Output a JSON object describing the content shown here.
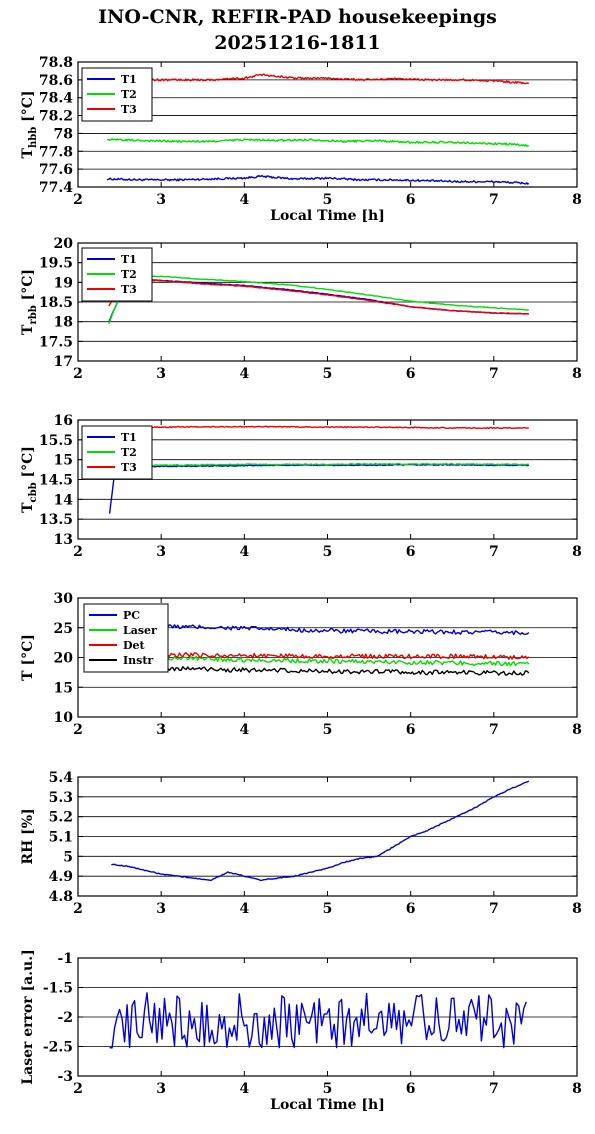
{
  "header": {
    "title_line1": "INO-CNR, REFIR-PAD housekeepings",
    "title_line2": "20251216-1811"
  },
  "chart_data": [
    {
      "type": "line",
      "ylabel": "T_hbb [°C]",
      "xlabel": "Local Time [h]",
      "xlim": [
        2,
        8
      ],
      "ylim": [
        77.4,
        78.8
      ],
      "yticks": [
        "77.4",
        "77.6",
        "77.8",
        "78",
        "78.2",
        "78.4",
        "78.6",
        "78.8"
      ],
      "xticks": [
        "2",
        "3",
        "4",
        "5",
        "6",
        "7",
        "8"
      ],
      "grid": true,
      "legend_position": "top-left",
      "series": [
        {
          "name": "T1",
          "color": "#0000dd",
          "x": [
            2.35,
            2.8,
            3.2,
            3.6,
            4.0,
            4.2,
            4.6,
            5.0,
            5.4,
            5.8,
            6.2,
            6.6,
            7.0,
            7.42
          ],
          "y": [
            77.49,
            77.48,
            77.48,
            77.49,
            77.5,
            77.52,
            77.49,
            77.5,
            77.48,
            77.48,
            77.47,
            77.46,
            77.46,
            77.44
          ]
        },
        {
          "name": "T2",
          "color": "#00dd00",
          "x": [
            2.35,
            2.8,
            3.2,
            3.6,
            4.0,
            4.4,
            4.8,
            5.2,
            5.6,
            6.0,
            6.4,
            6.8,
            7.2,
            7.42
          ],
          "y": [
            77.93,
            77.92,
            77.91,
            77.91,
            77.93,
            77.92,
            77.93,
            77.91,
            77.92,
            77.9,
            77.9,
            77.89,
            77.88,
            77.86
          ]
        },
        {
          "name": "T3",
          "color": "#ee0000",
          "x": [
            2.35,
            2.8,
            3.2,
            3.6,
            4.0,
            4.2,
            4.6,
            5.0,
            5.4,
            5.8,
            6.2,
            6.6,
            7.0,
            7.42
          ],
          "y": [
            78.6,
            78.6,
            78.6,
            78.6,
            78.62,
            78.66,
            78.62,
            78.62,
            78.6,
            78.61,
            78.6,
            78.6,
            78.59,
            78.56
          ]
        }
      ]
    },
    {
      "type": "line",
      "ylabel": "T_rbb [°C]",
      "xlabel": "",
      "xlim": [
        2,
        8
      ],
      "ylim": [
        17,
        20
      ],
      "yticks": [
        "17",
        "17.5",
        "18",
        "18.5",
        "19",
        "19.5",
        "20"
      ],
      "xticks": [
        "2",
        "3",
        "4",
        "5",
        "6",
        "7",
        "8"
      ],
      "grid": true,
      "legend_position": "top-left",
      "series": [
        {
          "name": "T1",
          "color": "#0000dd",
          "x": [
            2.37,
            2.6,
            3.0,
            3.5,
            4.0,
            4.5,
            5.0,
            5.5,
            6.0,
            6.5,
            7.0,
            7.42
          ],
          "y": [
            18.0,
            19.1,
            19.05,
            18.98,
            18.92,
            18.82,
            18.7,
            18.56,
            18.38,
            18.28,
            18.22,
            18.2
          ]
        },
        {
          "name": "T2",
          "color": "#00dd00",
          "x": [
            2.37,
            2.6,
            3.0,
            3.5,
            4.0,
            4.5,
            5.0,
            5.5,
            6.0,
            6.5,
            7.0,
            7.42
          ],
          "y": [
            17.95,
            19.18,
            19.15,
            19.08,
            19.02,
            18.94,
            18.82,
            18.68,
            18.52,
            18.42,
            18.35,
            18.3
          ]
        },
        {
          "name": "T3",
          "color": "#ee0000",
          "x": [
            2.37,
            2.6,
            3.0,
            3.5,
            4.0,
            4.5,
            5.0,
            5.5,
            6.0,
            6.5,
            7.0,
            7.42
          ],
          "y": [
            18.4,
            19.08,
            19.04,
            18.96,
            18.9,
            18.8,
            18.68,
            18.54,
            18.38,
            18.28,
            18.22,
            18.2
          ]
        }
      ]
    },
    {
      "type": "line",
      "ylabel": "T_cbb [°C]",
      "xlabel": "",
      "xlim": [
        2,
        8
      ],
      "ylim": [
        13,
        16
      ],
      "yticks": [
        "13",
        "13.5",
        "14",
        "14.5",
        "15",
        "15.5",
        "16"
      ],
      "xticks": [
        "2",
        "3",
        "4",
        "5",
        "6",
        "7",
        "8"
      ],
      "grid": true,
      "legend_position": "top-left",
      "series": [
        {
          "name": "T1",
          "color": "#0000dd",
          "x": [
            2.38,
            2.45,
            3.0,
            3.5,
            4.0,
            4.5,
            5.0,
            5.5,
            6.0,
            6.5,
            7.0,
            7.42
          ],
          "y": [
            13.65,
            14.82,
            14.83,
            14.84,
            14.85,
            14.86,
            14.86,
            14.86,
            14.87,
            14.87,
            14.86,
            14.86
          ]
        },
        {
          "name": "T2",
          "color": "#00dd00",
          "x": [
            2.38,
            2.45,
            3.0,
            3.5,
            4.0,
            4.5,
            5.0,
            5.5,
            6.0,
            6.5,
            7.0,
            7.42
          ],
          "y": [
            14.6,
            14.85,
            14.86,
            14.87,
            14.88,
            14.88,
            14.88,
            14.89,
            14.89,
            14.89,
            14.88,
            14.88
          ]
        },
        {
          "name": "T3",
          "color": "#ee0000",
          "x": [
            2.38,
            2.5,
            3.0,
            3.5,
            4.0,
            4.5,
            5.0,
            5.5,
            6.0,
            6.5,
            7.0,
            7.42
          ],
          "y": [
            15.8,
            15.82,
            15.82,
            15.83,
            15.83,
            15.83,
            15.82,
            15.82,
            15.81,
            15.8,
            15.8,
            15.8
          ]
        }
      ]
    },
    {
      "type": "line",
      "ylabel": "T [°C]",
      "xlabel": "",
      "xlim": [
        2,
        8
      ],
      "ylim": [
        10,
        30
      ],
      "yticks": [
        "10",
        "15",
        "20",
        "25",
        "30"
      ],
      "xticks": [
        "2",
        "3",
        "4",
        "5",
        "6",
        "7",
        "8"
      ],
      "grid": true,
      "legend_position": "top-left",
      "series": [
        {
          "name": "PC",
          "color": "#0000dd",
          "x": [
            3.0,
            3.5,
            4.0,
            4.5,
            5.0,
            5.5,
            6.0,
            6.5,
            7.0,
            7.42
          ],
          "y": [
            25.2,
            25.1,
            24.9,
            24.7,
            24.5,
            24.4,
            24.3,
            24.3,
            24.2,
            24.2
          ]
        },
        {
          "name": "Laser",
          "color": "#00dd00",
          "x": [
            3.0,
            3.5,
            4.0,
            4.5,
            5.0,
            5.5,
            6.0,
            6.5,
            7.0,
            7.42
          ],
          "y": [
            19.9,
            19.8,
            19.6,
            19.5,
            19.4,
            19.3,
            19.2,
            19.1,
            19.0,
            18.9
          ]
        },
        {
          "name": "Det",
          "color": "#ee0000",
          "x": [
            3.0,
            3.5,
            4.0,
            4.5,
            5.0,
            5.5,
            6.0,
            6.5,
            7.0,
            7.42
          ],
          "y": [
            20.5,
            20.4,
            20.3,
            20.3,
            20.2,
            20.2,
            20.2,
            20.2,
            20.1,
            20.1
          ]
        },
        {
          "name": "Instr",
          "color": "#000000",
          "x": [
            3.0,
            3.5,
            4.0,
            4.5,
            5.0,
            5.5,
            6.0,
            6.5,
            7.0,
            7.42
          ],
          "y": [
            18.2,
            18.0,
            17.9,
            17.8,
            17.7,
            17.6,
            17.5,
            17.5,
            17.4,
            17.4
          ]
        }
      ]
    },
    {
      "type": "line",
      "ylabel": "RH [%]",
      "xlabel": "",
      "xlim": [
        2,
        8
      ],
      "ylim": [
        4.8,
        5.4
      ],
      "yticks": [
        "4.8",
        "4.9",
        "5",
        "5.1",
        "5.2",
        "5.3",
        "5.4"
      ],
      "xticks": [
        "2",
        "3",
        "4",
        "5",
        "6",
        "7",
        "8"
      ],
      "grid": true,
      "series": [
        {
          "name": "",
          "color": "#0000dd",
          "x": [
            2.4,
            2.6,
            2.8,
            3.0,
            3.2,
            3.4,
            3.6,
            3.8,
            4.0,
            4.2,
            4.4,
            4.6,
            4.8,
            5.0,
            5.2,
            5.4,
            5.6,
            5.8,
            6.0,
            6.2,
            6.4,
            6.6,
            6.8,
            7.0,
            7.2,
            7.42
          ],
          "y": [
            4.96,
            4.95,
            4.93,
            4.91,
            4.9,
            4.89,
            4.88,
            4.92,
            4.9,
            4.88,
            4.89,
            4.9,
            4.92,
            4.94,
            4.97,
            4.99,
            5.0,
            5.05,
            5.1,
            5.13,
            5.17,
            5.21,
            5.25,
            5.3,
            5.34,
            5.38
          ]
        }
      ]
    },
    {
      "type": "line",
      "ylabel": "Laser error [a.u.]",
      "xlabel": "Local Time [h]",
      "xlim": [
        2,
        8
      ],
      "ylim": [
        -3,
        -1
      ],
      "yticks": [
        "-3",
        "-2.5",
        "-2",
        "-1.5",
        "-1"
      ],
      "xticks": [
        "2",
        "3",
        "4",
        "5",
        "6",
        "7",
        "8"
      ],
      "grid": true,
      "series": [
        {
          "name": "",
          "color": "#0000dd",
          "x": [
            2.38,
            2.5,
            2.7,
            2.9,
            3.1,
            3.3,
            3.5,
            3.7,
            3.9,
            4.1,
            4.3,
            4.5,
            4.7,
            4.9,
            5.1,
            5.3,
            5.5,
            5.7,
            5.9,
            6.1,
            6.3,
            6.5,
            6.7,
            6.9,
            7.1,
            7.3,
            7.42
          ],
          "y": [
            -2.4,
            -2.0,
            -1.9,
            -2.3,
            -1.8,
            -2.2,
            -2.0,
            -2.4,
            -1.9,
            -2.1,
            -2.0,
            -2.2,
            -1.9,
            -2.1,
            -2.0,
            -2.3,
            -1.8,
            -2.2,
            -2.5,
            -1.9,
            -2.1,
            -2.3,
            -2.0,
            -1.8,
            -2.2,
            -2.0,
            -2.1
          ]
        }
      ]
    }
  ]
}
